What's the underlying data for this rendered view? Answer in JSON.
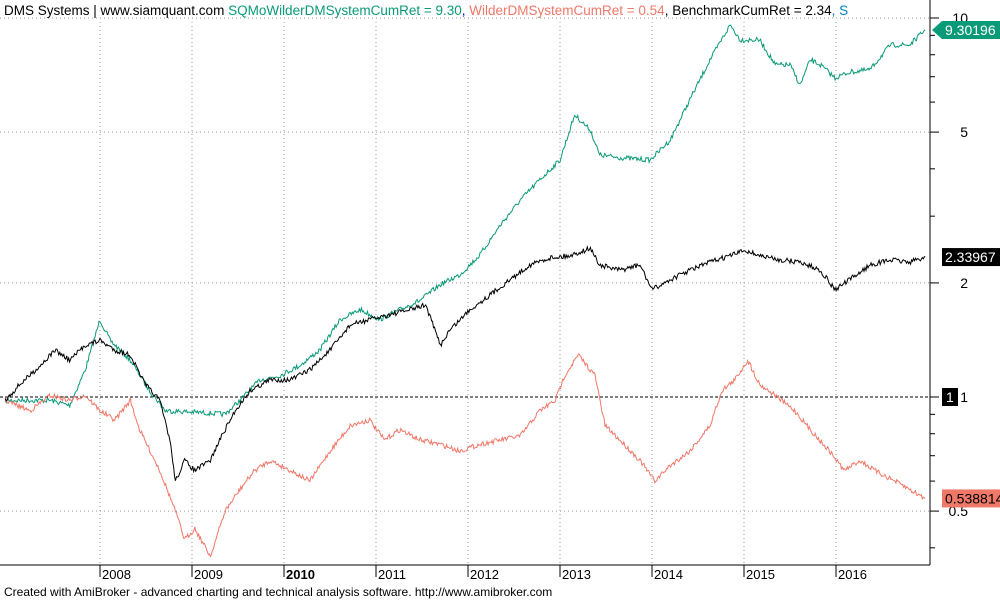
{
  "header": {
    "prefix": "DMS Systems | www.siamquant.com ",
    "s1_label": "SQMoWilderDMSystemCumRet = 9.30",
    "sep1": ", ",
    "s2_label": "WilderDMSystemCumRet = 0.54",
    "sep2": ", ",
    "s3_label": "BenchmarkCumRet = 2.34",
    "sep3": ", S"
  },
  "footer": "Created with AmiBroker - advanced charting and technical analysis software. http://www.amibroker.com",
  "chart_data": {
    "type": "line",
    "title": "DMS Systems | www.siamquant.com",
    "yscale": "log",
    "ylim": [
      0.35,
      11
    ],
    "xlim": [
      2006.95,
      2017.0
    ],
    "y_ticks": [
      {
        "v": 10,
        "label": "10"
      },
      {
        "v": 5,
        "label": "5"
      },
      {
        "v": 2,
        "label": "2"
      },
      {
        "v": 1,
        "label": "1"
      },
      {
        "v": 0.5,
        "label": "0.5"
      }
    ],
    "x_ticks": [
      {
        "v": 2008,
        "label": "2008",
        "bold": false
      },
      {
        "v": 2009,
        "label": "2009",
        "bold": false
      },
      {
        "v": 2010,
        "label": "2010",
        "bold": true
      },
      {
        "v": 2011,
        "label": "2011",
        "bold": false
      },
      {
        "v": 2012,
        "label": "2012",
        "bold": false
      },
      {
        "v": 2013,
        "label": "2013",
        "bold": false
      },
      {
        "v": 2014,
        "label": "2014",
        "bold": false
      },
      {
        "v": 2015,
        "label": "2015",
        "bold": false
      },
      {
        "v": 2016,
        "label": "2016",
        "bold": false
      }
    ],
    "reference_line": {
      "value": 1,
      "label": "1"
    },
    "grid": true,
    "series": [
      {
        "name": "SQMoWilderDMSystemCumRet",
        "color": "#0a9a78",
        "last_label": "9.30196",
        "points": [
          [
            2006.97,
            0.98
          ],
          [
            2007.46,
            0.98
          ],
          [
            2007.67,
            0.95
          ],
          [
            2007.84,
            1.18
          ],
          [
            2008.0,
            1.6
          ],
          [
            2008.11,
            1.41
          ],
          [
            2008.33,
            1.25
          ],
          [
            2008.54,
            1.04
          ],
          [
            2008.71,
            0.92
          ],
          [
            2009.09,
            0.91
          ],
          [
            2009.36,
            0.9
          ],
          [
            2009.52,
            0.98
          ],
          [
            2009.74,
            1.11
          ],
          [
            2009.96,
            1.14
          ],
          [
            2010.17,
            1.21
          ],
          [
            2010.39,
            1.33
          ],
          [
            2010.61,
            1.6
          ],
          [
            2010.83,
            1.7
          ],
          [
            2011.04,
            1.6
          ],
          [
            2011.26,
            1.7
          ],
          [
            2011.48,
            1.8
          ],
          [
            2011.7,
            1.98
          ],
          [
            2011.91,
            2.1
          ],
          [
            2012.13,
            2.37
          ],
          [
            2012.35,
            2.84
          ],
          [
            2012.57,
            3.31
          ],
          [
            2012.78,
            3.74
          ],
          [
            2013.0,
            4.22
          ],
          [
            2013.16,
            5.55
          ],
          [
            2013.33,
            5.06
          ],
          [
            2013.43,
            4.35
          ],
          [
            2013.65,
            4.28
          ],
          [
            2013.98,
            4.22
          ],
          [
            2014.2,
            4.77
          ],
          [
            2014.41,
            6.08
          ],
          [
            2014.63,
            7.75
          ],
          [
            2014.85,
            9.59
          ],
          [
            2014.96,
            8.75
          ],
          [
            2015.17,
            8.75
          ],
          [
            2015.34,
            7.52
          ],
          [
            2015.5,
            7.52
          ],
          [
            2015.61,
            6.65
          ],
          [
            2015.72,
            7.75
          ],
          [
            2015.83,
            7.52
          ],
          [
            2015.99,
            6.95
          ],
          [
            2016.15,
            7.2
          ],
          [
            2016.37,
            7.3
          ],
          [
            2016.59,
            8.49
          ],
          [
            2016.8,
            8.49
          ],
          [
            2016.97,
            9.3
          ]
        ]
      },
      {
        "name": "WilderDMSystemCumRet",
        "color": "#f07868",
        "last_label": "0.538814",
        "points": [
          [
            2006.97,
            0.98
          ],
          [
            2007.24,
            0.92
          ],
          [
            2007.46,
            1.01
          ],
          [
            2007.67,
            0.98
          ],
          [
            2007.84,
            1.01
          ],
          [
            2008.0,
            0.92
          ],
          [
            2008.16,
            0.87
          ],
          [
            2008.33,
            0.98
          ],
          [
            2008.43,
            0.82
          ],
          [
            2008.65,
            0.64
          ],
          [
            2008.82,
            0.5
          ],
          [
            2008.92,
            0.42
          ],
          [
            2009.03,
            0.45
          ],
          [
            2009.2,
            0.38
          ],
          [
            2009.36,
            0.5
          ],
          [
            2009.52,
            0.57
          ],
          [
            2009.68,
            0.64
          ],
          [
            2009.85,
            0.68
          ],
          [
            2010.07,
            0.64
          ],
          [
            2010.28,
            0.6
          ],
          [
            2010.5,
            0.72
          ],
          [
            2010.72,
            0.84
          ],
          [
            2010.93,
            0.87
          ],
          [
            2011.09,
            0.77
          ],
          [
            2011.26,
            0.82
          ],
          [
            2011.48,
            0.77
          ],
          [
            2011.7,
            0.75
          ],
          [
            2011.91,
            0.72
          ],
          [
            2012.13,
            0.75
          ],
          [
            2012.35,
            0.77
          ],
          [
            2012.57,
            0.79
          ],
          [
            2012.78,
            0.92
          ],
          [
            2012.95,
            0.98
          ],
          [
            2013.05,
            1.14
          ],
          [
            2013.2,
            1.29
          ],
          [
            2013.38,
            1.14
          ],
          [
            2013.49,
            0.84
          ],
          [
            2013.65,
            0.77
          ],
          [
            2013.87,
            0.68
          ],
          [
            2014.03,
            0.6
          ],
          [
            2014.2,
            0.66
          ],
          [
            2014.41,
            0.72
          ],
          [
            2014.63,
            0.84
          ],
          [
            2014.76,
            1.04
          ],
          [
            2014.9,
            1.11
          ],
          [
            2015.04,
            1.25
          ],
          [
            2015.17,
            1.08
          ],
          [
            2015.34,
            1.01
          ],
          [
            2015.55,
            0.92
          ],
          [
            2015.72,
            0.82
          ],
          [
            2015.93,
            0.72
          ],
          [
            2016.09,
            0.64
          ],
          [
            2016.26,
            0.68
          ],
          [
            2016.42,
            0.64
          ],
          [
            2016.64,
            0.6
          ],
          [
            2016.8,
            0.57
          ],
          [
            2016.97,
            0.54
          ]
        ]
      },
      {
        "name": "BenchmarkCumRet",
        "color": "#000000",
        "last_label": "2.33967",
        "points": [
          [
            2006.97,
            0.98
          ],
          [
            2007.13,
            1.08
          ],
          [
            2007.35,
            1.21
          ],
          [
            2007.51,
            1.33
          ],
          [
            2007.67,
            1.25
          ],
          [
            2007.84,
            1.37
          ],
          [
            2008.0,
            1.41
          ],
          [
            2008.16,
            1.33
          ],
          [
            2008.33,
            1.29
          ],
          [
            2008.49,
            1.08
          ],
          [
            2008.65,
            0.98
          ],
          [
            2008.76,
            0.77
          ],
          [
            2008.82,
            0.6
          ],
          [
            2008.92,
            0.68
          ],
          [
            2009.03,
            0.64
          ],
          [
            2009.2,
            0.68
          ],
          [
            2009.3,
            0.77
          ],
          [
            2009.47,
            0.92
          ],
          [
            2009.63,
            1.04
          ],
          [
            2009.85,
            1.11
          ],
          [
            2010.07,
            1.11
          ],
          [
            2010.28,
            1.18
          ],
          [
            2010.5,
            1.33
          ],
          [
            2010.72,
            1.55
          ],
          [
            2010.93,
            1.6
          ],
          [
            2011.15,
            1.65
          ],
          [
            2011.37,
            1.7
          ],
          [
            2011.54,
            1.75
          ],
          [
            2011.7,
            1.37
          ],
          [
            2011.8,
            1.5
          ],
          [
            2012.02,
            1.7
          ],
          [
            2012.24,
            1.86
          ],
          [
            2012.46,
            2.04
          ],
          [
            2012.67,
            2.23
          ],
          [
            2012.89,
            2.33
          ],
          [
            2013.11,
            2.36
          ],
          [
            2013.33,
            2.47
          ],
          [
            2013.43,
            2.23
          ],
          [
            2013.65,
            2.16
          ],
          [
            2013.87,
            2.23
          ],
          [
            2014.0,
            1.92
          ],
          [
            2014.2,
            2.04
          ],
          [
            2014.41,
            2.16
          ],
          [
            2014.63,
            2.27
          ],
          [
            2014.85,
            2.36
          ],
          [
            2015.01,
            2.44
          ],
          [
            2015.17,
            2.36
          ],
          [
            2015.39,
            2.3
          ],
          [
            2015.61,
            2.27
          ],
          [
            2015.83,
            2.16
          ],
          [
            2015.99,
            1.92
          ],
          [
            2016.15,
            2.04
          ],
          [
            2016.37,
            2.23
          ],
          [
            2016.59,
            2.3
          ],
          [
            2016.8,
            2.27
          ],
          [
            2016.97,
            2.34
          ]
        ]
      }
    ]
  }
}
